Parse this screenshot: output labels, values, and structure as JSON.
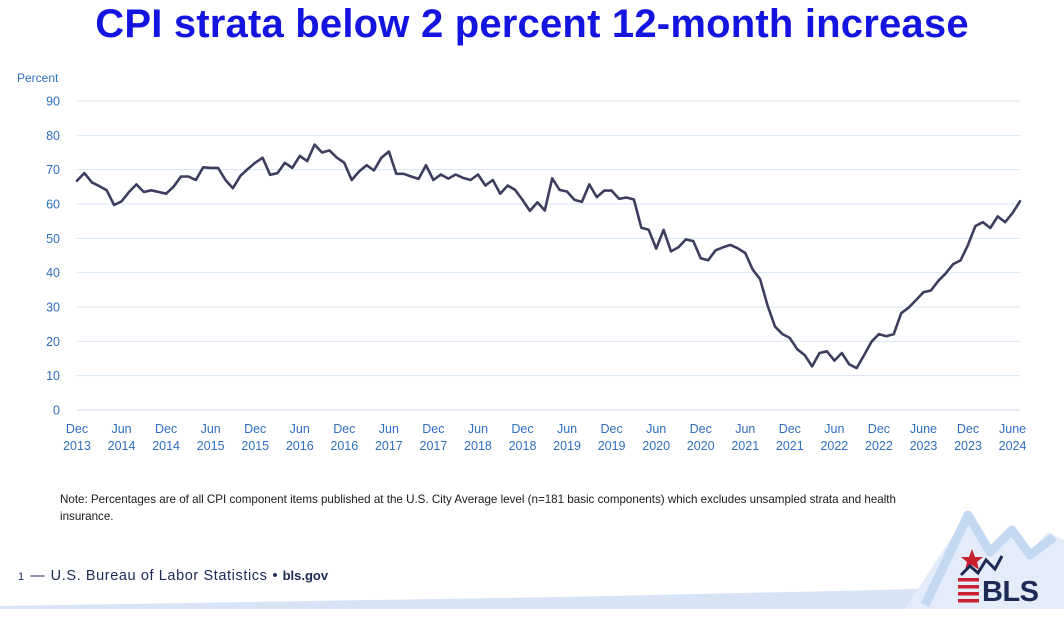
{
  "title": "CPI strata below 2 percent 12-month increase",
  "footnote": "Note: Percentages are of all CPI component items published at the U.S. City Average level (n=181 basic components) which excludes unsampled strata and health insurance.",
  "footer": {
    "page_number": "1",
    "dash": "—",
    "organization": "U.S. Bureau of Labor Statistics",
    "bullet": "•",
    "website": "bls.gov"
  },
  "logo": {
    "text": "BLS"
  },
  "colors": {
    "title": "#1414e0",
    "line": "#3c3d5f",
    "axis_text": "#2f6fbf",
    "grid": "#d7e4f3",
    "accent_light": "#cfe0f5"
  },
  "chart_data": {
    "type": "line",
    "title": "",
    "ylabel": "Percent",
    "xlabel": "",
    "ylim": [
      0,
      90
    ],
    "yticks": [
      0,
      10,
      20,
      30,
      40,
      50,
      60,
      70,
      80,
      90
    ],
    "grid": true,
    "x_start": "Dec 2013",
    "x_end": "Jul 2024",
    "x_tick_labels": [
      {
        "month": "Dec",
        "year": "2013"
      },
      {
        "month": "Jun",
        "year": "2014"
      },
      {
        "month": "Dec",
        "year": "2014"
      },
      {
        "month": "Jun",
        "year": "2015"
      },
      {
        "month": "Dec",
        "year": "2015"
      },
      {
        "month": "Jun",
        "year": "2016"
      },
      {
        "month": "Dec",
        "year": "2016"
      },
      {
        "month": "Jun",
        "year": "2017"
      },
      {
        "month": "Dec",
        "year": "2017"
      },
      {
        "month": "Jun",
        "year": "2018"
      },
      {
        "month": "Dec",
        "year": "2018"
      },
      {
        "month": "Jun",
        "year": "2019"
      },
      {
        "month": "Dec",
        "year": "2019"
      },
      {
        "month": "Jun",
        "year": "2020"
      },
      {
        "month": "Dec",
        "year": "2020"
      },
      {
        "month": "Jun",
        "year": "2021"
      },
      {
        "month": "Dec",
        "year": "2021"
      },
      {
        "month": "Jun",
        "year": "2022"
      },
      {
        "month": "Dec",
        "year": "2022"
      },
      {
        "month": "June",
        "year": "2023"
      },
      {
        "month": "Dec",
        "year": "2023"
      },
      {
        "month": "June",
        "year": "2024"
      }
    ],
    "series": [
      {
        "name": "Percent of CPI strata below 2 percent 12-month increase",
        "values": [
          66.8,
          69.0,
          66.3,
          65.2,
          64.0,
          59.7,
          60.8,
          63.5,
          65.7,
          63.5,
          64.0,
          63.5,
          63.0,
          65.0,
          68.0,
          68.0,
          67.0,
          70.7,
          70.5,
          70.5,
          67.0,
          64.6,
          68.2,
          70.2,
          72.0,
          73.5,
          68.5,
          69.0,
          72.0,
          70.5,
          74.0,
          72.5,
          77.3,
          75.0,
          75.6,
          73.5,
          72.0,
          67.0,
          69.5,
          71.3,
          69.8,
          73.5,
          75.3,
          68.8,
          68.8,
          68.0,
          67.3,
          71.3,
          67.0,
          68.6,
          67.4,
          68.6,
          67.6,
          67.0,
          68.6,
          65.4,
          67.0,
          63.0,
          65.4,
          64.1,
          61.2,
          58.0,
          60.5,
          58.1,
          67.5,
          64.1,
          63.6,
          61.2,
          60.6,
          65.7,
          62.0,
          63.9,
          63.9,
          61.5,
          61.9,
          61.3,
          53.1,
          52.5,
          47.0,
          52.5,
          46.2,
          47.4,
          49.7,
          49.2,
          44.2,
          43.6,
          46.5,
          47.4,
          48.1,
          47.1,
          45.7,
          40.9,
          38.1,
          30.5,
          24.3,
          22.1,
          21.0,
          17.7,
          16.0,
          12.7,
          16.6,
          17.1,
          14.4,
          16.6,
          13.3,
          12.2,
          16.0,
          19.9,
          22.1,
          21.5,
          22.1,
          28.2,
          29.8,
          32.0,
          34.3,
          34.8,
          37.6,
          39.8,
          42.5,
          43.6,
          48.1,
          53.6,
          54.7,
          53.0,
          56.4,
          54.7,
          57.4,
          60.8
        ]
      }
    ]
  }
}
